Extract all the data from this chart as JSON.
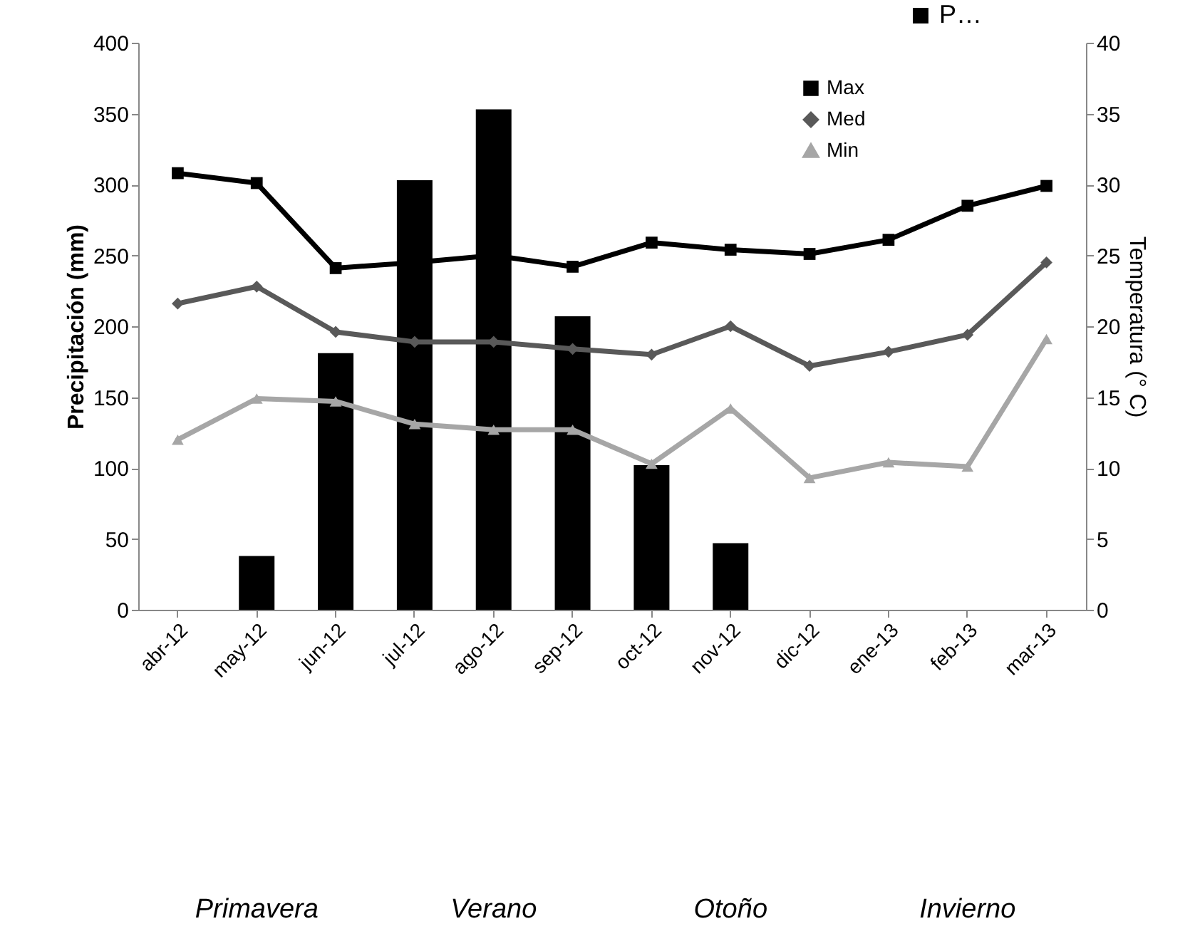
{
  "chart_data": {
    "type": "bar",
    "ylabel": "Precipitación (mm)",
    "y2label": "Temperatura  (° C)",
    "categories": [
      "abr-12",
      "may-12",
      "jun-12",
      "jul-12",
      "ago-12",
      "sep-12",
      "oct-12",
      "nov-12",
      "dic-12",
      "ene-13",
      "feb-13",
      "mar-13"
    ],
    "series": [
      {
        "name": "P…",
        "color": "#000000",
        "values": [
          0,
          38,
          181,
          303,
          353,
          207,
          102,
          47,
          0,
          0,
          0,
          0
        ]
      },
      {
        "name": "Max",
        "type": "line",
        "axis": "y2",
        "marker": "square",
        "color": "#000000",
        "values": [
          30.8,
          30.1,
          24.1,
          24.5,
          25.0,
          24.2,
          25.9,
          25.4,
          25.1,
          26.1,
          28.5,
          29.9
        ]
      },
      {
        "name": "Med",
        "type": "line",
        "axis": "y2",
        "marker": "diamond",
        "color": "#595959",
        "values": [
          21.6,
          22.8,
          19.6,
          18.9,
          18.9,
          18.4,
          18.0,
          20.0,
          17.2,
          18.2,
          19.4,
          24.5
        ]
      },
      {
        "name": "Min",
        "type": "line",
        "axis": "y2",
        "marker": "triangle",
        "color": "#a6a6a6",
        "values": [
          12.0,
          14.9,
          14.7,
          13.1,
          12.7,
          12.7,
          10.3,
          14.2,
          9.3,
          10.4,
          10.1,
          19.1
        ]
      }
    ],
    "ylim": [
      0,
      400
    ],
    "yticks": [
      0,
      50,
      100,
      150,
      200,
      250,
      300,
      350,
      400
    ],
    "y2lim": [
      0,
      40
    ],
    "y2ticks": [
      0,
      5,
      10,
      15,
      20,
      25,
      30,
      35,
      40
    ],
    "grid": false,
    "legend": "top right",
    "annotations": [
      "Primavera",
      "Verano",
      "Otoño",
      "Invierno"
    ]
  }
}
